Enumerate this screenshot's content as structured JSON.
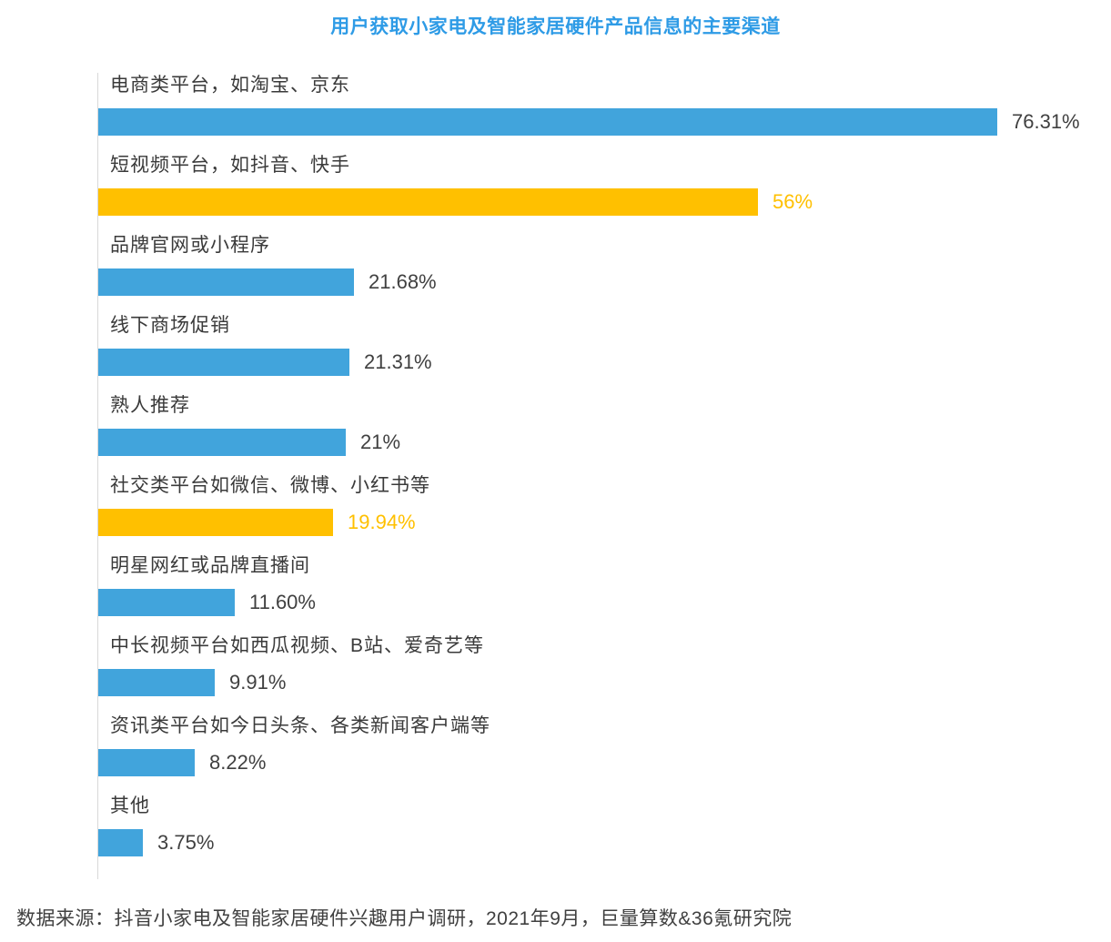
{
  "title": "用户获取小家电及智能家居硬件产品信息的主要渠道",
  "footer": "数据来源：抖音小家电及智能家居硬件兴趣用户调研，2021年9月，巨量算数&36氪研究院",
  "colors": {
    "blue": "#41A4DC",
    "yellow": "#FFC000",
    "title": "#2E9BE6",
    "text": "#404040",
    "axis": "#D9D9D9"
  },
  "chart_data": {
    "type": "bar",
    "orientation": "horizontal",
    "title": "用户获取小家电及智能家居硬件产品信息的主要渠道",
    "xlabel": "",
    "ylabel": "",
    "xlim": [
      0,
      80
    ],
    "grid": false,
    "legend": "none",
    "categories": [
      "电商类平台，如淘宝、京东",
      "短视频平台，如抖音、快手",
      "品牌官网或小程序",
      "线下商场促销",
      "熟人推荐",
      "社交类平台如微信、微博、小红书等",
      "明星网红或品牌直播间",
      "中长视频平台如西瓜视频、B站、爱奇艺等",
      "资讯类平台如今日头条、各类新闻客户端等",
      "其他"
    ],
    "values": [
      76.31,
      56,
      21.68,
      21.31,
      21,
      19.94,
      11.6,
      9.91,
      8.22,
      3.75
    ],
    "value_labels": [
      "76.31%",
      "56%",
      "21.68%",
      "21.31%",
      "21%",
      "19.94%",
      "11.60%",
      "9.91%",
      "8.22%",
      "3.75%"
    ],
    "bar_colors": [
      "blue",
      "yellow",
      "blue",
      "blue",
      "blue",
      "yellow",
      "blue",
      "blue",
      "blue",
      "blue"
    ]
  }
}
